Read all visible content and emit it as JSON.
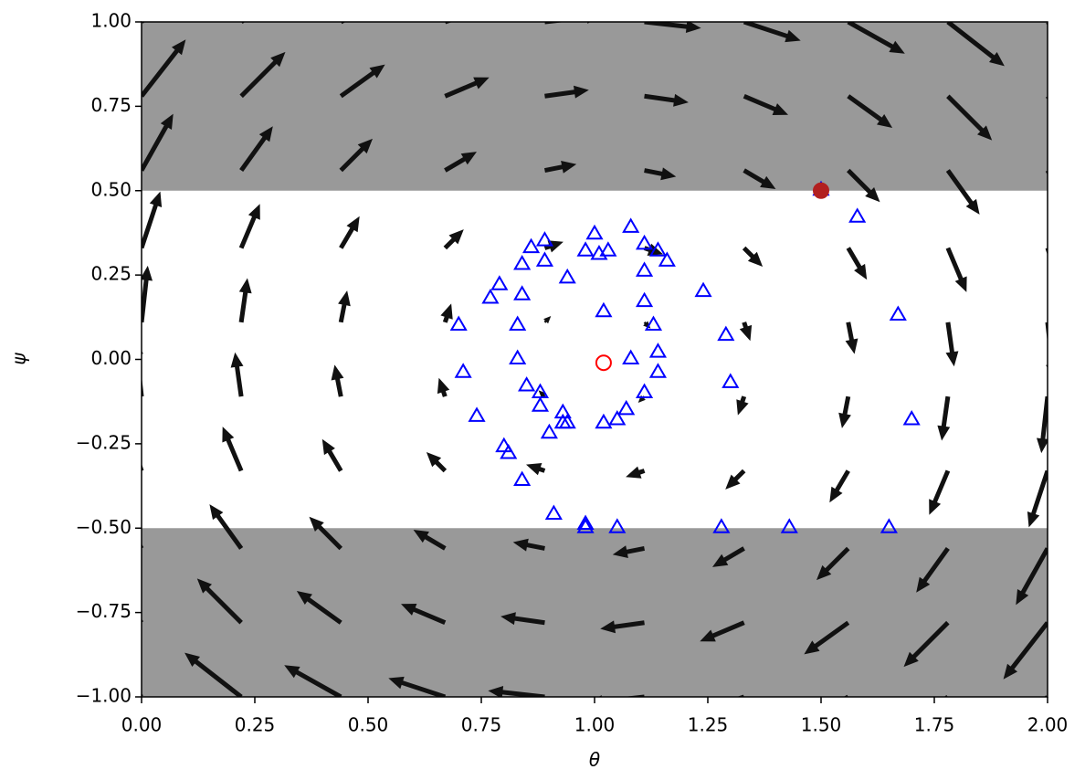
{
  "chart_data": {
    "type": "quiver",
    "x_label": "θ",
    "y_label": "ψ",
    "xlim": [
      0,
      2
    ],
    "ylim": [
      -1,
      1
    ],
    "xticks": [
      {
        "value": 0,
        "label": "0.00"
      },
      {
        "value": 0.25,
        "label": "0.25"
      },
      {
        "value": 0.5,
        "label": "0.50"
      },
      {
        "value": 0.75,
        "label": "0.75"
      },
      {
        "value": 1,
        "label": "1.00"
      },
      {
        "value": 1.25,
        "label": "1.25"
      },
      {
        "value": 1.5,
        "label": "1.50"
      },
      {
        "value": 1.75,
        "label": "1.75"
      },
      {
        "value": 2,
        "label": "2.00"
      }
    ],
    "yticks": [
      {
        "value": -1,
        "label": "−1.00"
      },
      {
        "value": -0.75,
        "label": "−0.75"
      },
      {
        "value": -0.5,
        "label": "−0.50"
      },
      {
        "value": -0.25,
        "label": "−0.25"
      },
      {
        "value": 0,
        "label": "0.00"
      },
      {
        "value": 0.25,
        "label": "0.25"
      },
      {
        "value": 0.5,
        "label": "0.50"
      },
      {
        "value": 0.75,
        "label": "0.75"
      },
      {
        "value": 1,
        "label": "1.00"
      }
    ],
    "shaded_bands": [
      [
        0.5,
        1
      ],
      [
        -1,
        -0.5
      ]
    ],
    "shade_color": "#999999",
    "quiver": {
      "color": "#111111",
      "x": [
        0,
        0.22,
        0.44,
        0.67,
        0.89,
        1.11,
        1.33,
        1.56,
        1.78,
        2
      ],
      "y": [
        -1,
        -0.78,
        -0.56,
        -0.33,
        -0.11,
        0.11,
        0.33,
        0.56,
        0.78,
        1
      ],
      "u": [
        -1,
        -0.78,
        -0.56,
        -0.33,
        -0.11,
        0.11,
        0.33,
        0.56,
        0.78,
        1
      ],
      "v": [
        1,
        0.78,
        0.56,
        0.33,
        0.11,
        -0.11,
        -0.33,
        -0.56,
        -0.78,
        -1
      ]
    },
    "series": [
      {
        "marker": "triangle",
        "color": "#0000ff",
        "filled": false,
        "x": [
          0.89,
          1.0,
          1.08,
          0.86,
          0.84,
          0.89,
          0.98,
          1.01,
          1.03,
          1.11,
          1.14,
          1.16,
          0.94,
          1.11,
          0.79,
          0.77,
          0.84,
          1.24,
          1.02,
          1.11,
          0.7,
          0.83,
          1.13,
          1.29,
          1.67,
          1.5,
          1.58,
          0.83,
          1.08,
          1.14,
          0.71,
          1.14,
          1.3,
          0.85,
          0.88,
          1.11,
          0.88,
          0.93,
          1.07,
          1.05,
          0.93,
          0.94,
          1.02,
          0.74,
          0.9,
          1.7,
          0.8,
          0.81,
          0.84,
          0.91,
          0.98,
          0.98,
          1.05,
          1.28,
          1.43,
          1.65
        ],
        "y": [
          0.35,
          0.37,
          0.39,
          0.33,
          0.28,
          0.29,
          0.32,
          0.31,
          0.32,
          0.34,
          0.32,
          0.29,
          0.24,
          0.26,
          0.22,
          0.18,
          0.19,
          0.2,
          0.14,
          0.17,
          0.1,
          0.1,
          0.1,
          0.07,
          0.13,
          0.5,
          0.42,
          0.0,
          0.0,
          0.02,
          -0.04,
          -0.04,
          -0.07,
          -0.08,
          -0.1,
          -0.1,
          -0.14,
          -0.16,
          -0.15,
          -0.18,
          -0.19,
          -0.19,
          -0.19,
          -0.17,
          -0.22,
          -0.18,
          -0.26,
          -0.28,
          -0.36,
          -0.46,
          -0.49,
          -0.5,
          -0.5,
          -0.5,
          -0.5,
          -0.5
        ]
      },
      {
        "marker": "circle",
        "color": "#ff0000",
        "filled": false,
        "x": [
          1.02
        ],
        "y": [
          -0.01
        ]
      },
      {
        "marker": "circle",
        "color": "#b22020",
        "filled": true,
        "x": [
          1.5
        ],
        "y": [
          0.5
        ]
      }
    ]
  }
}
